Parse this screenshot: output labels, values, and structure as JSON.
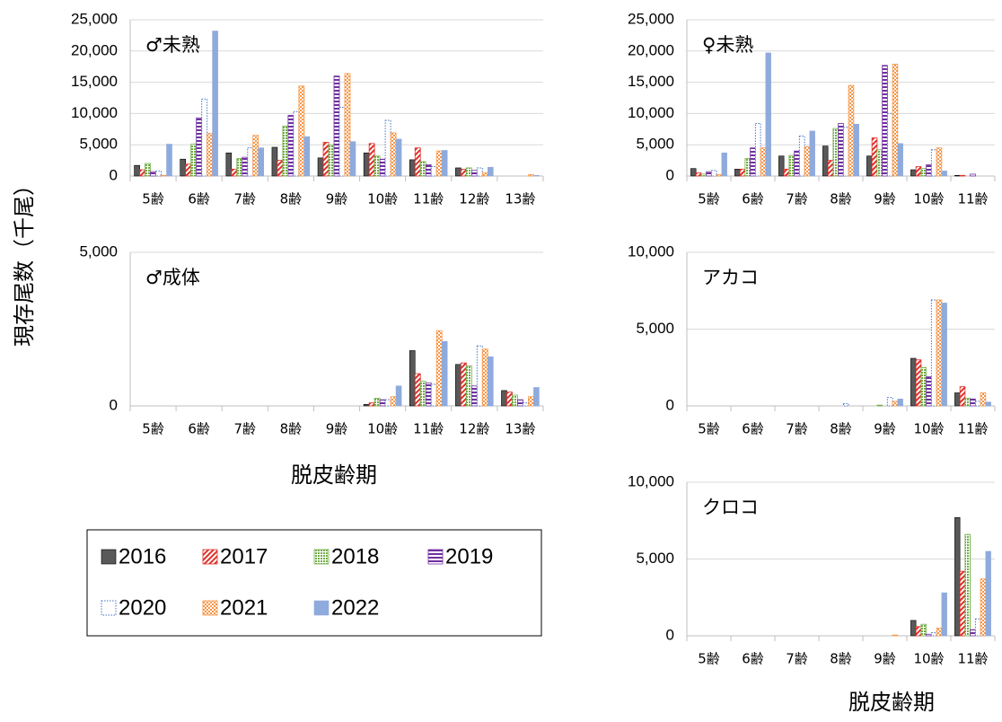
{
  "ylabel": "現存尾数（千尾）",
  "chart_data": [
    {
      "type": "bar",
      "title": "♂未熟",
      "categories": [
        "5齢",
        "6齢",
        "7齢",
        "8齢",
        "9齢",
        "10齢",
        "11齢",
        "12齢",
        "13齢"
      ],
      "ylim": [
        0,
        25000
      ],
      "yticks": [
        0,
        {
          "value": 5000,
          "label": "5,000"
        },
        {
          "value": 10000,
          "label": "10,000"
        },
        {
          "value": 15000,
          "label": "15,000"
        },
        {
          "value": 20000,
          "label": "20,000"
        },
        {
          "value": 25000,
          "label": "25,000"
        }
      ],
      "grid": true,
      "series": [
        {
          "name": "2016",
          "color": "#595959",
          "style": "solid",
          "values": [
            1700,
            2700,
            3700,
            4600,
            2900,
            3700,
            2600,
            1300,
            0
          ]
        },
        {
          "name": "2017",
          "color": "#e0302b",
          "style": "hatch",
          "values": [
            1000,
            1900,
            1100,
            2500,
            5400,
            5200,
            4500,
            1100,
            0
          ]
        },
        {
          "name": "2018",
          "color": "#70ad47",
          "style": "dots",
          "values": [
            2000,
            5100,
            2800,
            8000,
            5000,
            3200,
            2300,
            1300,
            0
          ]
        },
        {
          "name": "2019",
          "color": "#7030a0",
          "style": "stripes",
          "values": [
            700,
            9300,
            3000,
            9700,
            16000,
            2700,
            1800,
            900,
            0
          ]
        },
        {
          "name": "2020",
          "color": "#4472c4",
          "style": "outline",
          "values": [
            800,
            12300,
            4500,
            10300,
            11000,
            8900,
            1500,
            1300,
            0
          ]
        },
        {
          "name": "2021",
          "color": "#f79646",
          "style": "checker",
          "values": [
            100,
            6800,
            6500,
            14400,
            16400,
            6900,
            4000,
            500,
            200
          ]
        },
        {
          "name": "2022",
          "color": "#8faadc",
          "style": "solid",
          "values": [
            5100,
            23200,
            4500,
            6300,
            5500,
            5900,
            4100,
            1400,
            100
          ]
        }
      ]
    },
    {
      "type": "bar",
      "title": "♀未熟",
      "categories": [
        "5齢",
        "6齢",
        "7齢",
        "8齢",
        "9齢",
        "10齢",
        "11齢"
      ],
      "ylim": [
        0,
        25000
      ],
      "yticks": [
        0,
        {
          "value": 5000,
          "label": "5,000"
        },
        {
          "value": 10000,
          "label": "10,000"
        },
        {
          "value": 15000,
          "label": "15,000"
        },
        {
          "value": 20000,
          "label": "20,000"
        },
        {
          "value": 25000,
          "label": "25,000"
        }
      ],
      "grid": true,
      "series": [
        {
          "name": "2016",
          "color": "#595959",
          "style": "solid",
          "values": [
            1200,
            1100,
            3200,
            4800,
            3200,
            1000,
            100
          ]
        },
        {
          "name": "2017",
          "color": "#e0302b",
          "style": "hatch",
          "values": [
            500,
            1100,
            1100,
            2500,
            6100,
            1500,
            100
          ]
        },
        {
          "name": "2018",
          "color": "#70ad47",
          "style": "dots",
          "values": [
            300,
            2800,
            3300,
            7600,
            4200,
            1200,
            0
          ]
        },
        {
          "name": "2019",
          "color": "#7030a0",
          "style": "stripes",
          "values": [
            700,
            4500,
            4000,
            8400,
            17700,
            1800,
            300
          ]
        },
        {
          "name": "2020",
          "color": "#4472c4",
          "style": "outline",
          "values": [
            900,
            8400,
            6400,
            7800,
            10000,
            4200,
            0
          ]
        },
        {
          "name": "2021",
          "color": "#f79646",
          "style": "checker",
          "values": [
            200,
            4500,
            4700,
            14500,
            17900,
            4500,
            0
          ]
        },
        {
          "name": "2022",
          "color": "#8faadc",
          "style": "solid",
          "values": [
            3700,
            19700,
            7200,
            8300,
            5200,
            800,
            0
          ]
        }
      ]
    },
    {
      "type": "bar",
      "title": "♂成体",
      "xlabel": "脱皮齢期",
      "categories": [
        "5齢",
        "6齢",
        "7齢",
        "8齢",
        "9齢",
        "10齢",
        "11齢",
        "12齢",
        "13齢"
      ],
      "ylim": [
        0,
        5000
      ],
      "yticks": [
        0,
        {
          "value": 5000,
          "label": "5,000"
        }
      ],
      "grid": true,
      "series": [
        {
          "name": "2016",
          "color": "#595959",
          "style": "solid",
          "values": [
            0,
            0,
            0,
            0,
            0,
            50,
            1800,
            1350,
            500
          ]
        },
        {
          "name": "2017",
          "color": "#e0302b",
          "style": "hatch",
          "values": [
            0,
            0,
            0,
            0,
            0,
            100,
            1050,
            1400,
            450
          ]
        },
        {
          "name": "2018",
          "color": "#70ad47",
          "style": "dots",
          "values": [
            0,
            0,
            0,
            0,
            0,
            250,
            800,
            1300,
            350
          ]
        },
        {
          "name": "2019",
          "color": "#7030a0",
          "style": "stripes",
          "values": [
            0,
            0,
            0,
            0,
            0,
            200,
            750,
            650,
            200
          ]
        },
        {
          "name": "2020",
          "color": "#4472c4",
          "style": "outline",
          "values": [
            0,
            0,
            0,
            0,
            0,
            200,
            700,
            1950,
            100
          ]
        },
        {
          "name": "2021",
          "color": "#f79646",
          "style": "checker",
          "values": [
            0,
            0,
            0,
            0,
            0,
            300,
            2450,
            1850,
            300
          ]
        },
        {
          "name": "2022",
          "color": "#8faadc",
          "style": "solid",
          "values": [
            0,
            0,
            0,
            0,
            0,
            650,
            2100,
            1600,
            600
          ]
        }
      ]
    },
    {
      "type": "bar",
      "title": "アカコ",
      "categories": [
        "5齢",
        "6齢",
        "7齢",
        "8齢",
        "9齢",
        "10齢",
        "11齢"
      ],
      "ylim": [
        0,
        10000
      ],
      "yticks": [
        0,
        {
          "value": 5000,
          "label": "5,000"
        },
        {
          "value": 10000,
          "label": "10,000"
        }
      ],
      "grid": true,
      "series": [
        {
          "name": "2016",
          "color": "#595959",
          "style": "solid",
          "values": [
            0,
            0,
            0,
            0,
            0,
            3100,
            850
          ]
        },
        {
          "name": "2017",
          "color": "#e0302b",
          "style": "hatch",
          "values": [
            0,
            0,
            0,
            0,
            0,
            3000,
            1250
          ]
        },
        {
          "name": "2018",
          "color": "#70ad47",
          "style": "dots",
          "values": [
            0,
            0,
            0,
            0,
            50,
            2500,
            500
          ]
        },
        {
          "name": "2019",
          "color": "#7030a0",
          "style": "stripes",
          "values": [
            0,
            0,
            0,
            0,
            0,
            1900,
            450
          ]
        },
        {
          "name": "2020",
          "color": "#4472c4",
          "style": "outline",
          "values": [
            0,
            0,
            0,
            150,
            550,
            6900,
            300
          ]
        },
        {
          "name": "2021",
          "color": "#f79646",
          "style": "checker",
          "values": [
            0,
            0,
            0,
            0,
            300,
            6900,
            850
          ]
        },
        {
          "name": "2022",
          "color": "#8faadc",
          "style": "solid",
          "values": [
            0,
            0,
            0,
            0,
            450,
            6700,
            250
          ]
        }
      ]
    },
    {
      "type": "bar",
      "title": "クロコ",
      "xlabel": "脱皮齢期",
      "categories": [
        "5齢",
        "6齢",
        "7齢",
        "8齢",
        "9齢",
        "10齢",
        "11齢"
      ],
      "ylim": [
        0,
        10000
      ],
      "yticks": [
        0,
        {
          "value": 5000,
          "label": "5,000"
        },
        {
          "value": 10000,
          "label": "10,000"
        }
      ],
      "grid": true,
      "series": [
        {
          "name": "2016",
          "color": "#595959",
          "style": "solid",
          "values": [
            0,
            0,
            0,
            0,
            0,
            1000,
            7700
          ]
        },
        {
          "name": "2017",
          "color": "#e0302b",
          "style": "hatch",
          "values": [
            0,
            0,
            0,
            0,
            0,
            600,
            4200
          ]
        },
        {
          "name": "2018",
          "color": "#70ad47",
          "style": "dots",
          "values": [
            0,
            0,
            0,
            0,
            0,
            750,
            6600
          ]
        },
        {
          "name": "2019",
          "color": "#7030a0",
          "style": "stripes",
          "values": [
            0,
            0,
            0,
            0,
            0,
            100,
            400
          ]
        },
        {
          "name": "2020",
          "color": "#4472c4",
          "style": "outline",
          "values": [
            0,
            0,
            0,
            0,
            0,
            200,
            1100
          ]
        },
        {
          "name": "2021",
          "color": "#f79646",
          "style": "checker",
          "values": [
            0,
            0,
            0,
            0,
            50,
            500,
            3700
          ]
        },
        {
          "name": "2022",
          "color": "#8faadc",
          "style": "solid",
          "values": [
            0,
            0,
            0,
            0,
            0,
            2800,
            5500
          ]
        }
      ]
    }
  ]
}
